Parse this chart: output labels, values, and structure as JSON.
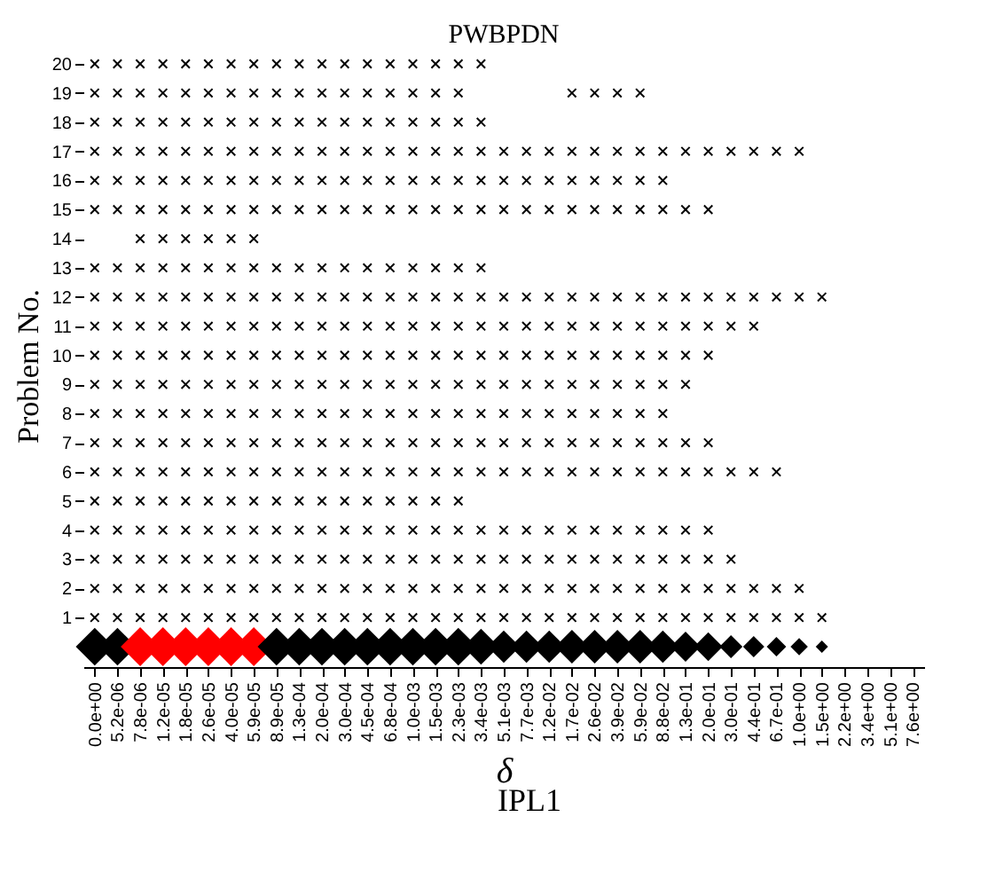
{
  "chart_data": {
    "type": "scatter",
    "title": "PWBPDN",
    "xlabel": "δ",
    "ylabel": "Problem No.",
    "annotations": [
      "IPL1"
    ],
    "marker": "cross",
    "grid": false,
    "categories": [
      "0.0e+00",
      "5.2e-06",
      "7.8e-06",
      "1.2e-05",
      "1.8e-05",
      "2.6e-05",
      "4.0e-05",
      "5.9e-05",
      "8.9e-05",
      "1.3e-04",
      "2.0e-04",
      "3.0e-04",
      "4.5e-04",
      "6.8e-04",
      "1.0e-03",
      "1.5e-03",
      "2.3e-03",
      "3.4e-03",
      "5.1e-03",
      "7.7e-03",
      "1.2e-02",
      "1.7e-02",
      "2.6e-02",
      "3.9e-02",
      "5.9e-02",
      "8.8e-02",
      "1.3e-01",
      "2.0e-01",
      "3.0e-01",
      "4.4e-01",
      "6.7e-01",
      "1.0e+00",
      "1.5e+00",
      "2.2e+00",
      "3.4e+00",
      "5.1e+00",
      "7.6e+00"
    ],
    "ylim": [
      -0.7,
      20
    ],
    "yticks": [
      1,
      2,
      3,
      4,
      5,
      6,
      7,
      8,
      9,
      10,
      11,
      12,
      13,
      14,
      15,
      16,
      17,
      18,
      19,
      20
    ],
    "series": [
      {
        "type": "scatter",
        "color": "#000000",
        "values": [
          20,
          20,
          20,
          20,
          20,
          20,
          20,
          20,
          20,
          20,
          20,
          20,
          20,
          20,
          20,
          20,
          20,
          20,
          null,
          null,
          null,
          null,
          null,
          null,
          null,
          null,
          null,
          null,
          null,
          null,
          null,
          null,
          null,
          null,
          null,
          null,
          null
        ]
      },
      {
        "type": "scatter",
        "color": "#000000",
        "values": [
          19,
          19,
          19,
          19,
          19,
          19,
          19,
          19,
          19,
          19,
          19,
          19,
          19,
          19,
          19,
          19,
          19,
          null,
          null,
          null,
          null,
          19,
          19,
          19,
          19,
          null,
          null,
          null,
          null,
          null,
          null,
          null,
          null,
          null,
          null,
          null,
          null
        ]
      },
      {
        "type": "scatter",
        "color": "#000000",
        "values": [
          18,
          18,
          18,
          18,
          18,
          18,
          18,
          18,
          18,
          18,
          18,
          18,
          18,
          18,
          18,
          18,
          18,
          18,
          null,
          null,
          null,
          null,
          null,
          null,
          null,
          null,
          null,
          null,
          null,
          null,
          null,
          null,
          null,
          null,
          null,
          null,
          null
        ]
      },
      {
        "type": "scatter",
        "color": "#000000",
        "values": [
          17,
          17,
          17,
          17,
          17,
          17,
          17,
          17,
          17,
          17,
          17,
          17,
          17,
          17,
          17,
          17,
          17,
          17,
          17,
          17,
          17,
          17,
          17,
          17,
          17,
          17,
          17,
          17,
          17,
          17,
          17,
          17,
          null,
          null,
          null,
          null,
          null
        ]
      },
      {
        "type": "scatter",
        "color": "#000000",
        "values": [
          16,
          16,
          16,
          16,
          16,
          16,
          16,
          16,
          16,
          16,
          16,
          16,
          16,
          16,
          16,
          16,
          16,
          16,
          16,
          16,
          16,
          16,
          16,
          16,
          16,
          16,
          null,
          null,
          null,
          null,
          null,
          null,
          null,
          null,
          null,
          null,
          null
        ]
      },
      {
        "type": "scatter",
        "color": "#000000",
        "values": [
          15,
          15,
          15,
          15,
          15,
          15,
          15,
          15,
          15,
          15,
          15,
          15,
          15,
          15,
          15,
          15,
          15,
          15,
          15,
          15,
          15,
          15,
          15,
          15,
          15,
          15,
          15,
          15,
          null,
          null,
          null,
          null,
          null,
          null,
          null,
          null,
          null
        ]
      },
      {
        "type": "scatter",
        "color": "#000000",
        "values": [
          null,
          null,
          14,
          14,
          14,
          14,
          14,
          14,
          null,
          null,
          null,
          null,
          null,
          null,
          null,
          null,
          null,
          null,
          null,
          null,
          null,
          null,
          null,
          null,
          null,
          null,
          null,
          null,
          null,
          null,
          null,
          null,
          null,
          null,
          null,
          null,
          null
        ]
      },
      {
        "type": "scatter",
        "color": "#000000",
        "values": [
          13,
          13,
          13,
          13,
          13,
          13,
          13,
          13,
          13,
          13,
          13,
          13,
          13,
          13,
          13,
          13,
          13,
          13,
          null,
          null,
          null,
          null,
          null,
          null,
          null,
          null,
          null,
          null,
          null,
          null,
          null,
          null,
          null,
          null,
          null,
          null,
          null
        ]
      },
      {
        "type": "scatter",
        "color": "#000000",
        "values": [
          12,
          12,
          12,
          12,
          12,
          12,
          12,
          12,
          12,
          12,
          12,
          12,
          12,
          12,
          12,
          12,
          12,
          12,
          12,
          12,
          12,
          12,
          12,
          12,
          12,
          12,
          12,
          12,
          12,
          12,
          12,
          12,
          12,
          null,
          null,
          null,
          null
        ]
      },
      {
        "type": "scatter",
        "color": "#000000",
        "values": [
          11,
          11,
          11,
          11,
          11,
          11,
          11,
          11,
          11,
          11,
          11,
          11,
          11,
          11,
          11,
          11,
          11,
          11,
          11,
          11,
          11,
          11,
          11,
          11,
          11,
          11,
          11,
          11,
          11,
          11,
          null,
          null,
          null,
          null,
          null,
          null,
          null
        ]
      },
      {
        "type": "scatter",
        "color": "#000000",
        "values": [
          10,
          10,
          10,
          10,
          10,
          10,
          10,
          10,
          10,
          10,
          10,
          10,
          10,
          10,
          10,
          10,
          10,
          10,
          10,
          10,
          10,
          10,
          10,
          10,
          10,
          10,
          10,
          10,
          null,
          null,
          null,
          null,
          null,
          null,
          null,
          null,
          null
        ]
      },
      {
        "type": "scatter",
        "color": "#000000",
        "values": [
          9,
          9,
          9,
          9,
          9,
          9,
          9,
          9,
          9,
          9,
          9,
          9,
          9,
          9,
          9,
          9,
          9,
          9,
          9,
          9,
          9,
          9,
          9,
          9,
          9,
          9,
          9,
          null,
          null,
          null,
          null,
          null,
          null,
          null,
          null,
          null,
          null
        ]
      },
      {
        "type": "scatter",
        "color": "#000000",
        "values": [
          8,
          8,
          8,
          8,
          8,
          8,
          8,
          8,
          8,
          8,
          8,
          8,
          8,
          8,
          8,
          8,
          8,
          8,
          8,
          8,
          8,
          8,
          8,
          8,
          8,
          8,
          null,
          null,
          null,
          null,
          null,
          null,
          null,
          null,
          null,
          null,
          null
        ]
      },
      {
        "type": "scatter",
        "color": "#000000",
        "values": [
          7,
          7,
          7,
          7,
          7,
          7,
          7,
          7,
          7,
          7,
          7,
          7,
          7,
          7,
          7,
          7,
          7,
          7,
          7,
          7,
          7,
          7,
          7,
          7,
          7,
          7,
          7,
          7,
          null,
          null,
          null,
          null,
          null,
          null,
          null,
          null,
          null
        ]
      },
      {
        "type": "scatter",
        "color": "#000000",
        "values": [
          6,
          6,
          6,
          6,
          6,
          6,
          6,
          6,
          6,
          6,
          6,
          6,
          6,
          6,
          6,
          6,
          6,
          6,
          6,
          6,
          6,
          6,
          6,
          6,
          6,
          6,
          6,
          6,
          6,
          6,
          6,
          null,
          null,
          null,
          null,
          null,
          null
        ]
      },
      {
        "type": "scatter",
        "color": "#000000",
        "values": [
          5,
          5,
          5,
          5,
          5,
          5,
          5,
          5,
          5,
          5,
          5,
          5,
          5,
          5,
          5,
          5,
          5,
          null,
          null,
          null,
          null,
          null,
          null,
          null,
          null,
          null,
          null,
          null,
          null,
          null,
          null,
          null,
          null,
          null,
          null,
          null,
          null
        ]
      },
      {
        "type": "scatter",
        "color": "#000000",
        "values": [
          4,
          4,
          4,
          4,
          4,
          4,
          4,
          4,
          4,
          4,
          4,
          4,
          4,
          4,
          4,
          4,
          4,
          4,
          4,
          4,
          4,
          4,
          4,
          4,
          4,
          4,
          4,
          4,
          null,
          null,
          null,
          null,
          null,
          null,
          null,
          null,
          null
        ]
      },
      {
        "type": "scatter",
        "color": "#000000",
        "values": [
          3,
          3,
          3,
          3,
          3,
          3,
          3,
          3,
          3,
          3,
          3,
          3,
          3,
          3,
          3,
          3,
          3,
          3,
          3,
          3,
          3,
          3,
          3,
          3,
          3,
          3,
          3,
          3,
          3,
          null,
          null,
          null,
          null,
          null,
          null,
          null,
          null
        ]
      },
      {
        "type": "scatter",
        "color": "#000000",
        "values": [
          2,
          2,
          2,
          2,
          2,
          2,
          2,
          2,
          2,
          2,
          2,
          2,
          2,
          2,
          2,
          2,
          2,
          2,
          2,
          2,
          2,
          2,
          2,
          2,
          2,
          2,
          2,
          2,
          2,
          2,
          2,
          2,
          null,
          null,
          null,
          null,
          null
        ]
      },
      {
        "type": "scatter",
        "color": "#000000",
        "values": [
          1,
          1,
          1,
          1,
          1,
          1,
          1,
          1,
          1,
          1,
          1,
          1,
          1,
          1,
          1,
          1,
          1,
          1,
          1,
          1,
          1,
          1,
          1,
          1,
          1,
          1,
          1,
          1,
          1,
          1,
          1,
          1,
          1,
          null,
          null,
          null,
          null
        ]
      },
      {
        "type": "bubble",
        "marker": "diamond",
        "values": [
          0,
          0,
          0,
          0,
          0,
          0,
          0,
          0,
          0,
          0,
          0,
          0,
          0,
          0,
          0,
          0,
          0,
          0,
          0,
          0,
          0,
          0,
          0,
          0,
          0,
          0,
          0,
          0,
          0,
          0,
          0,
          0,
          0,
          null,
          null,
          null,
          null
        ],
        "sizes": [
          0.95,
          0.95,
          1,
          1,
          1,
          1,
          1,
          1,
          0.95,
          0.95,
          0.95,
          0.95,
          0.95,
          0.95,
          0.95,
          0.95,
          0.95,
          0.85,
          0.7,
          0.7,
          0.7,
          0.75,
          0.75,
          0.75,
          0.75,
          0.7,
          0.6,
          0.55,
          0.35,
          0.3,
          0.25,
          0.2,
          0.1,
          null,
          null,
          null,
          null
        ],
        "colors": [
          "#000000",
          "#000000",
          "#ff0000",
          "#ff0000",
          "#ff0000",
          "#ff0000",
          "#ff0000",
          "#ff0000",
          "#000000",
          "#000000",
          "#000000",
          "#000000",
          "#000000",
          "#000000",
          "#000000",
          "#000000",
          "#000000",
          "#000000",
          "#000000",
          "#000000",
          "#000000",
          "#000000",
          "#000000",
          "#000000",
          "#000000",
          "#000000",
          "#000000",
          "#000000",
          "#000000",
          "#000000",
          "#000000",
          "#000000",
          "#000000",
          null,
          null,
          null,
          null
        ]
      }
    ]
  }
}
